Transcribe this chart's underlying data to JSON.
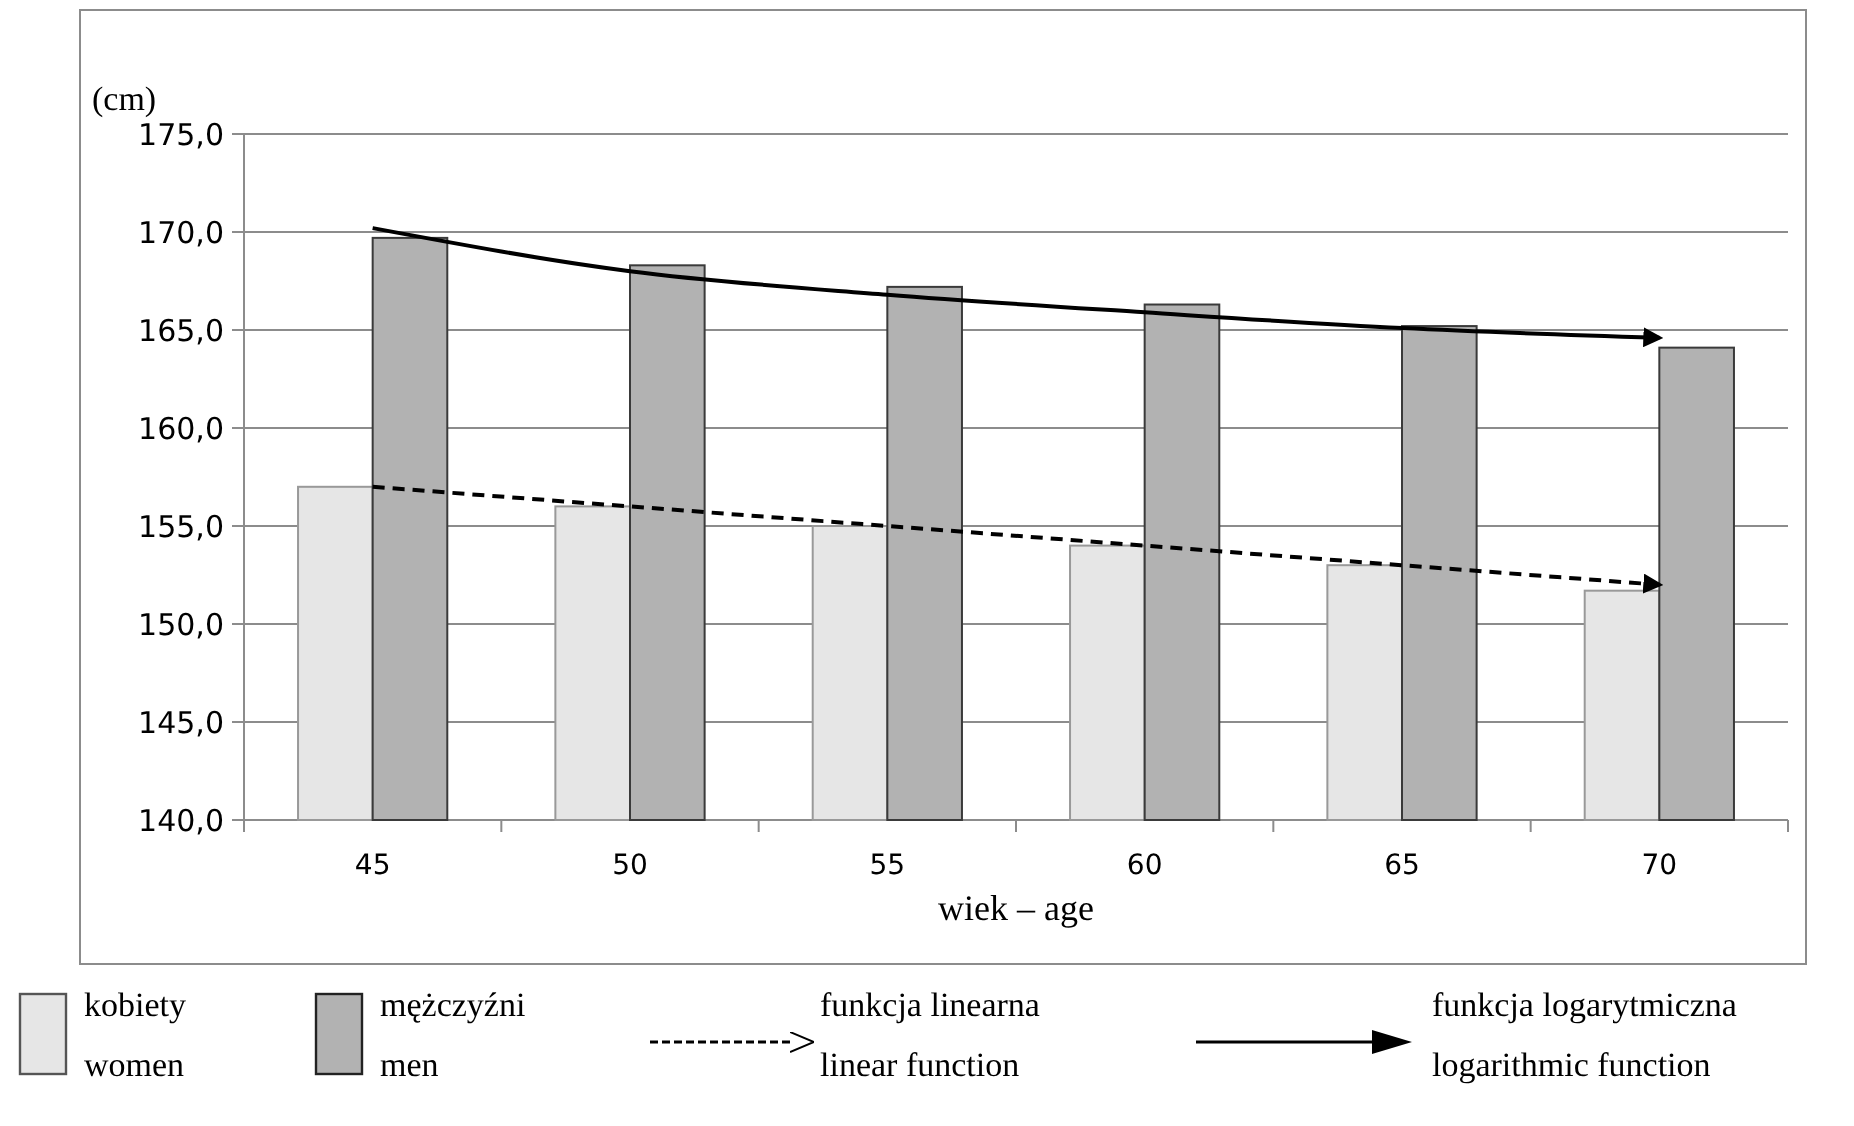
{
  "chart_data": {
    "type": "bar",
    "xlabel": "wiek – age",
    "ylabel": "(cm)",
    "categories": [
      "45",
      "50",
      "55",
      "60",
      "65",
      "70"
    ],
    "series": [
      {
        "name": "kobiety\nwomen",
        "color": "#e6e6e6",
        "values": [
          157.0,
          156.0,
          155.0,
          154.0,
          153.0,
          151.7
        ]
      },
      {
        "name": "mężczyźni\nmen",
        "color": "#b2b2b2",
        "values": [
          169.7,
          168.3,
          167.2,
          166.3,
          165.2,
          164.1
        ]
      },
      {
        "name": "funkcja linearna\nlinear function",
        "type": "line",
        "color": "#000000",
        "line_style": "dashed",
        "values": [
          157.0,
          156.0,
          155.0,
          154.0,
          153.0,
          152.0
        ]
      },
      {
        "name": "funkcja logarytmiczna\nlogarithmic function",
        "type": "line",
        "color": "#000000",
        "line_style": "solid",
        "values": [
          170.2,
          168.0,
          166.8,
          165.9,
          165.1,
          164.6
        ]
      }
    ],
    "ylim": [
      140,
      175
    ],
    "yticks": [
      {
        "value": 140,
        "label": "140,0"
      },
      {
        "value": 145,
        "label": "145,0"
      },
      {
        "value": 150,
        "label": "150,0"
      },
      {
        "value": 155,
        "label": "155,0"
      },
      {
        "value": 160,
        "label": "160,0"
      },
      {
        "value": 165,
        "label": "165,0"
      },
      {
        "value": 170,
        "label": "170,0"
      },
      {
        "value": 175,
        "label": "175,0"
      }
    ],
    "grid": "y",
    "legend": "bottom",
    "marker": "none"
  }
}
